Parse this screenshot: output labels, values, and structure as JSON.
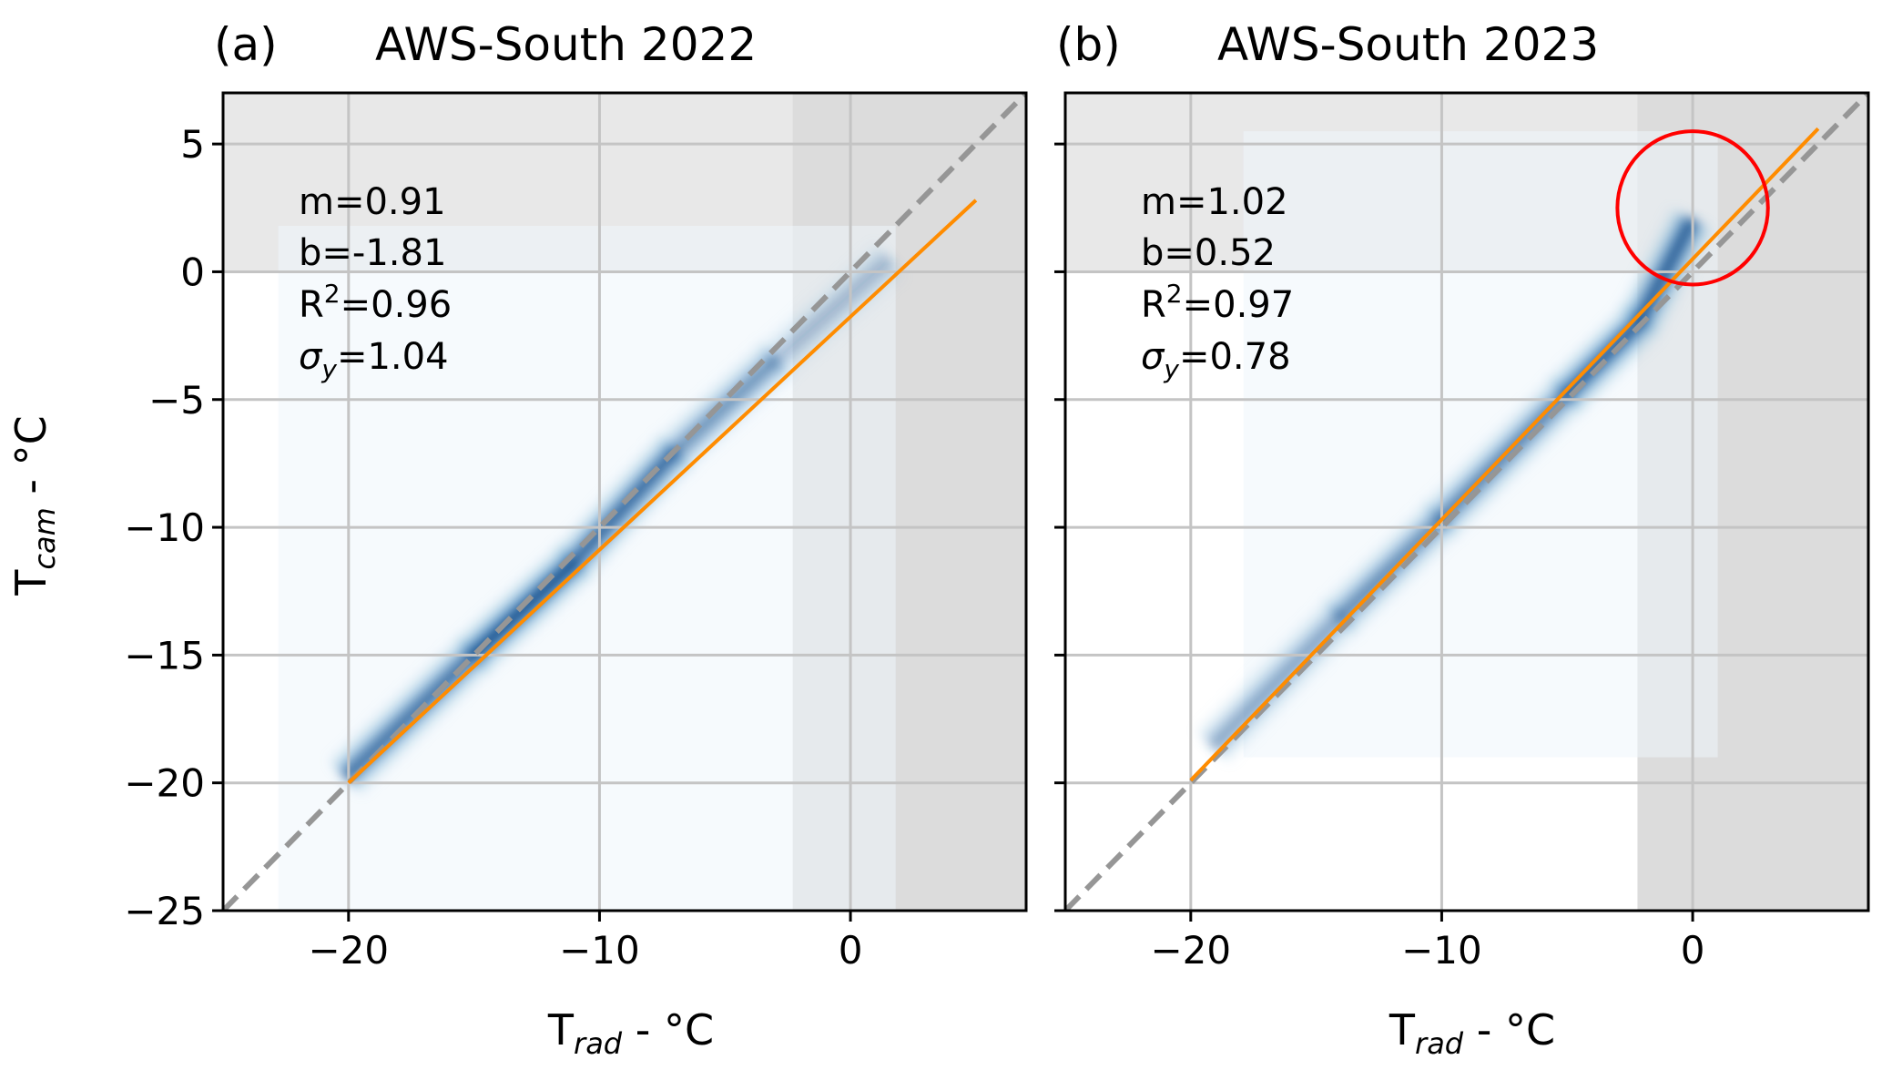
{
  "figure": {
    "ylabel_main": "T",
    "ylabel_sub": "cam",
    "ylabel_tail": " - °C",
    "xlabel_main": "T",
    "xlabel_sub": "rad",
    "xlabel_tail": " - °C"
  },
  "colors": {
    "shade_light": "#e8e8e8",
    "shade_dark": "#dcdcdc",
    "grid": "#c4c4c4",
    "identity_line": "#969696",
    "fit_line": "#ff8c00",
    "density_dark": "#08306b",
    "density_mid": "#2171b5",
    "density_light": "#9ecae1",
    "density_bg": "#eef5fc",
    "highlight_circle": "#ff0000"
  },
  "chart_data": [
    {
      "type": "heatmap",
      "panel": "(a)",
      "title": "AWS-South 2022",
      "xlim": [
        -25,
        7
      ],
      "ylim": [
        -25,
        7
      ],
      "xticks": [
        -20,
        -10,
        0
      ],
      "xtick_labels": [
        "−20",
        "−10",
        "0"
      ],
      "yticks": [
        5,
        0,
        -5,
        -10,
        -15,
        -20,
        -25
      ],
      "ytick_labels": [
        "5",
        "0",
        "−5",
        "−10",
        "−15",
        "−20",
        "−25"
      ],
      "grid": true,
      "shaded_regions": [
        {
          "shade": "light",
          "x": [
            -25,
            7
          ],
          "y": [
            0,
            7
          ]
        },
        {
          "shade": "dark",
          "x": [
            -2.3,
            7
          ],
          "y": [
            -25,
            7
          ]
        }
      ],
      "density_extent": {
        "x": [
          -22.8,
          1.8
        ],
        "y": [
          -25,
          1.8
        ]
      },
      "density_band": [
        {
          "x": -20,
          "y": -19.8,
          "w": 0.6
        },
        {
          "x": -15,
          "y": -15.1,
          "w": 1.0
        },
        {
          "x": -11,
          "y": -11.5,
          "w": 1.0
        },
        {
          "x": -7,
          "y": -7.2,
          "w": 0.7
        },
        {
          "x": -3,
          "y": -3.6,
          "w": 0.5
        },
        {
          "x": 1.5,
          "y": 0.3,
          "w": 0.2
        }
      ],
      "identity_line": {
        "x": [
          -25,
          7
        ],
        "y": [
          -25,
          7
        ]
      },
      "fit_line": {
        "x": [
          -20,
          5
        ],
        "y": [
          -20,
          2.8
        ]
      },
      "stats": {
        "m": "m=0.91",
        "b": "b=-1.81",
        "r2_prefix": "R",
        "r2_exp": "2",
        "r2_value": "=0.96",
        "sigma_symbol": "σ",
        "sigma_sub": "y",
        "sigma_value": "=1.04"
      }
    },
    {
      "type": "heatmap",
      "panel": "(b)",
      "title": "AWS-South 2023",
      "xlim": [
        -25,
        7
      ],
      "ylim": [
        -25,
        7
      ],
      "xticks": [
        -20,
        -10,
        0
      ],
      "xtick_labels": [
        "−20",
        "−10",
        "0"
      ],
      "yticks": [
        5,
        0,
        -5,
        -10,
        -15,
        -20,
        -25
      ],
      "ytick_labels": [
        "",
        "",
        "",
        "",
        "",
        "",
        ""
      ],
      "grid": true,
      "shaded_regions": [
        {
          "shade": "light",
          "x": [
            -25,
            7
          ],
          "y": [
            0,
            7
          ]
        },
        {
          "shade": "dark",
          "x": [
            -2.2,
            7
          ],
          "y": [
            -25,
            7
          ]
        }
      ],
      "density_extent": {
        "x": [
          -17.9,
          1.0
        ],
        "y": [
          -19.0,
          5.5
        ]
      },
      "density_band": [
        {
          "x": -19,
          "y": -18.6,
          "w": 0.3
        },
        {
          "x": -14,
          "y": -13.6,
          "w": 0.7
        },
        {
          "x": -10,
          "y": -9.8,
          "w": 0.6
        },
        {
          "x": -5,
          "y": -4.9,
          "w": 0.8
        },
        {
          "x": -2,
          "y": -2.0,
          "w": 1.0
        },
        {
          "x": 0,
          "y": 1.8,
          "w": 0.8
        }
      ],
      "identity_line": {
        "x": [
          -25,
          7
        ],
        "y": [
          -25,
          7
        ]
      },
      "fit_line": {
        "x": [
          -20,
          5
        ],
        "y": [
          -19.9,
          5.6
        ]
      },
      "highlight_circle": {
        "cx": 0,
        "cy": 2.5,
        "rx": 3,
        "ry": 3
      },
      "stats": {
        "m": "m=1.02",
        "b": "b=0.52",
        "r2_prefix": "R",
        "r2_exp": "2",
        "r2_value": "=0.97",
        "sigma_symbol": "σ",
        "sigma_sub": "y",
        "sigma_value": "=0.78"
      }
    }
  ]
}
